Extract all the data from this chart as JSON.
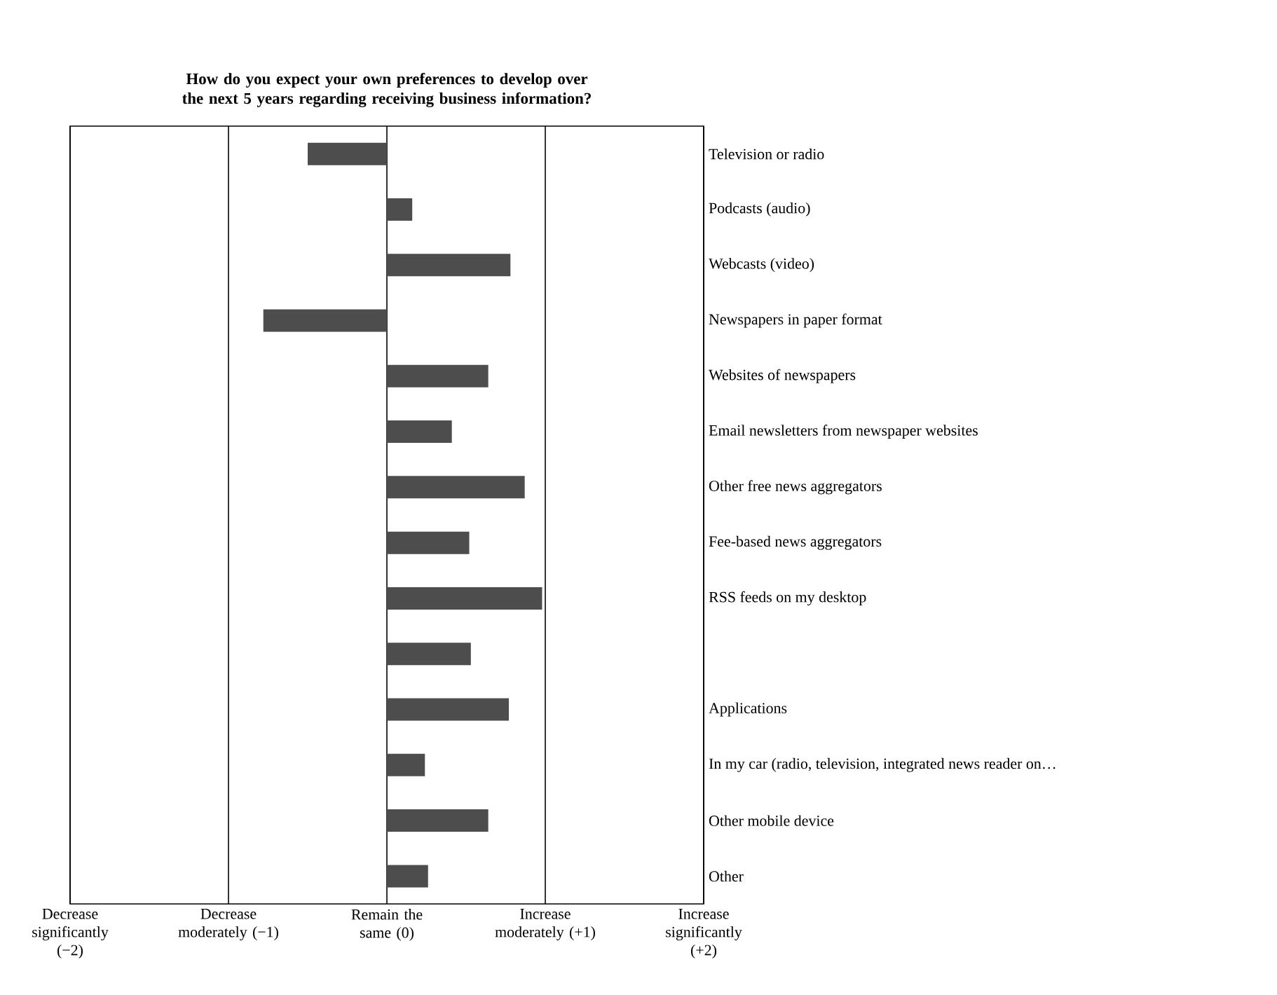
{
  "chart_data": {
    "type": "bar",
    "orientation": "horizontal",
    "title": "How do you expect your own preferences to develop over the next 5 years regarding receiving business information?",
    "categories": [
      "Television or radio",
      "Podcasts (audio)",
      "Webcasts (video)",
      "Newspapers in paper format",
      "Websites of newspapers",
      "Email newsletters from newspaper websites",
      "Other free news aggregators",
      "Fee-based news aggregators",
      "RSS feeds on my desktop",
      null,
      "Applications",
      "In my car (radio, television, integrated news reader on…",
      "Other mobile device",
      "Other"
    ],
    "values": [
      -0.5,
      0.16,
      0.78,
      -0.78,
      0.64,
      0.41,
      0.87,
      0.52,
      0.98,
      0.53,
      0.77,
      0.24,
      0.64,
      0.26
    ],
    "color": "#4d4d4d",
    "xlim": [
      -2,
      2
    ],
    "xticks": [
      {
        "value": -2,
        "label": "Decrease significantly (−2)"
      },
      {
        "value": -1,
        "label": "Decrease moderately (−1)"
      },
      {
        "value": 0,
        "label": "Remain the same (0)"
      },
      {
        "value": 1,
        "label": "Increase moderately (+1)"
      },
      {
        "value": 2,
        "label": "Increase significantly (+2)"
      }
    ],
    "grid": "x"
  }
}
